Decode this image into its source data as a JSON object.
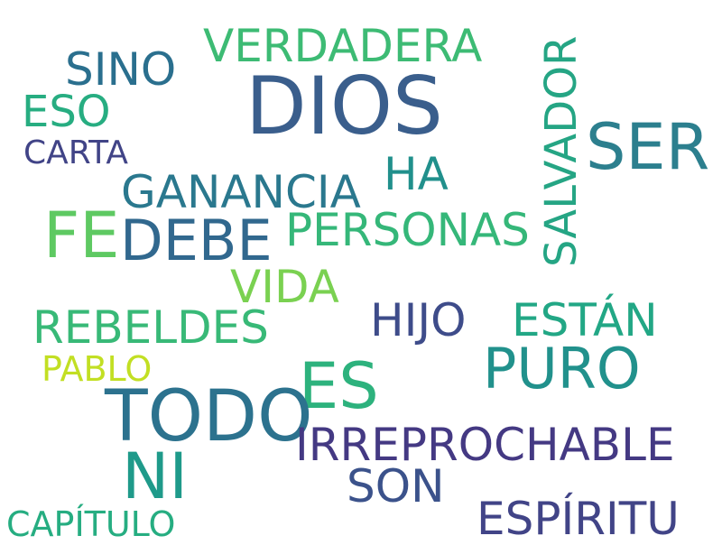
{
  "words": [
    {
      "key": "dios",
      "text": "DIOS",
      "color": "#3a5e8c"
    },
    {
      "key": "verdadera",
      "text": "VERDADERA",
      "color": "#3dbb74"
    },
    {
      "key": "sino",
      "text": "SINO",
      "color": "#2a6f8e"
    },
    {
      "key": "eso",
      "text": "ESO",
      "color": "#27ad81"
    },
    {
      "key": "carta",
      "text": "CARTA",
      "color": "#414487"
    },
    {
      "key": "ser",
      "text": "SER",
      "color": "#2c7f8e"
    },
    {
      "key": "salvador",
      "text": "SALVADOR",
      "color": "#25a584"
    },
    {
      "key": "ha",
      "text": "HA",
      "color": "#21908c"
    },
    {
      "key": "ganancia",
      "text": "GANANCIA",
      "color": "#2a788e"
    },
    {
      "key": "fe",
      "text": "FE",
      "color": "#5ec962"
    },
    {
      "key": "debe",
      "text": "DEBE",
      "color": "#31688e"
    },
    {
      "key": "personas",
      "text": "PERSONAS",
      "color": "#35b779"
    },
    {
      "key": "vida",
      "text": "VIDA",
      "color": "#7ad151"
    },
    {
      "key": "rebeldes",
      "text": "REBELDES",
      "color": "#38b977"
    },
    {
      "key": "hijo",
      "text": "HIJO",
      "color": "#3e4c8a"
    },
    {
      "key": "estan",
      "text": "ESTÁN",
      "color": "#22a785"
    },
    {
      "key": "pablo",
      "text": "PABLO",
      "color": "#c2df23"
    },
    {
      "key": "puro",
      "text": "PURO",
      "color": "#21918c"
    },
    {
      "key": "es",
      "text": "ES",
      "color": "#2db27d"
    },
    {
      "key": "todo",
      "text": "TODO",
      "color": "#2c728e"
    },
    {
      "key": "irreprochable",
      "text": "IRREPROCHABLE",
      "color": "#443983"
    },
    {
      "key": "ni",
      "text": "NI",
      "color": "#1f9a8a"
    },
    {
      "key": "son",
      "text": "SON",
      "color": "#3b528b"
    },
    {
      "key": "capitulo",
      "text": "CAPÍTULO",
      "color": "#26ad81"
    },
    {
      "key": "espiritu",
      "text": "ESPÍRITU",
      "color": "#414487"
    }
  ]
}
